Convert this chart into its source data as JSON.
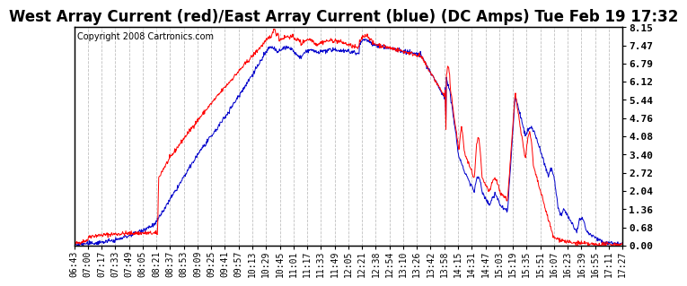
{
  "title": "West Array Current (red)/East Array Current (blue) (DC Amps) Tue Feb 19 17:32",
  "copyright": "Copyright 2008 Cartronics.com",
  "ylabel_right_ticks": [
    0.0,
    0.68,
    1.36,
    2.04,
    2.72,
    3.4,
    4.08,
    4.76,
    5.44,
    6.12,
    6.79,
    7.47,
    8.15
  ],
  "x_tick_labels": [
    "06:43",
    "07:00",
    "07:17",
    "07:33",
    "07:49",
    "08:05",
    "08:21",
    "08:37",
    "08:53",
    "09:09",
    "09:25",
    "09:41",
    "09:57",
    "10:13",
    "10:29",
    "10:45",
    "11:01",
    "11:17",
    "11:33",
    "11:49",
    "12:05",
    "12:21",
    "12:38",
    "12:54",
    "13:10",
    "13:26",
    "13:42",
    "13:58",
    "14:15",
    "14:31",
    "14:47",
    "15:03",
    "15:19",
    "15:35",
    "15:51",
    "16:07",
    "16:23",
    "16:39",
    "16:55",
    "17:11",
    "17:27"
  ],
  "bg_color": "#ffffff",
  "plot_bg_color": "#ffffff",
  "grid_color": "#c0c0c0",
  "red_color": "#ff0000",
  "blue_color": "#0000cc",
  "title_fontsize": 12,
  "copyright_fontsize": 7,
  "tick_fontsize": 7,
  "y_min": 0.0,
  "y_max": 8.15
}
